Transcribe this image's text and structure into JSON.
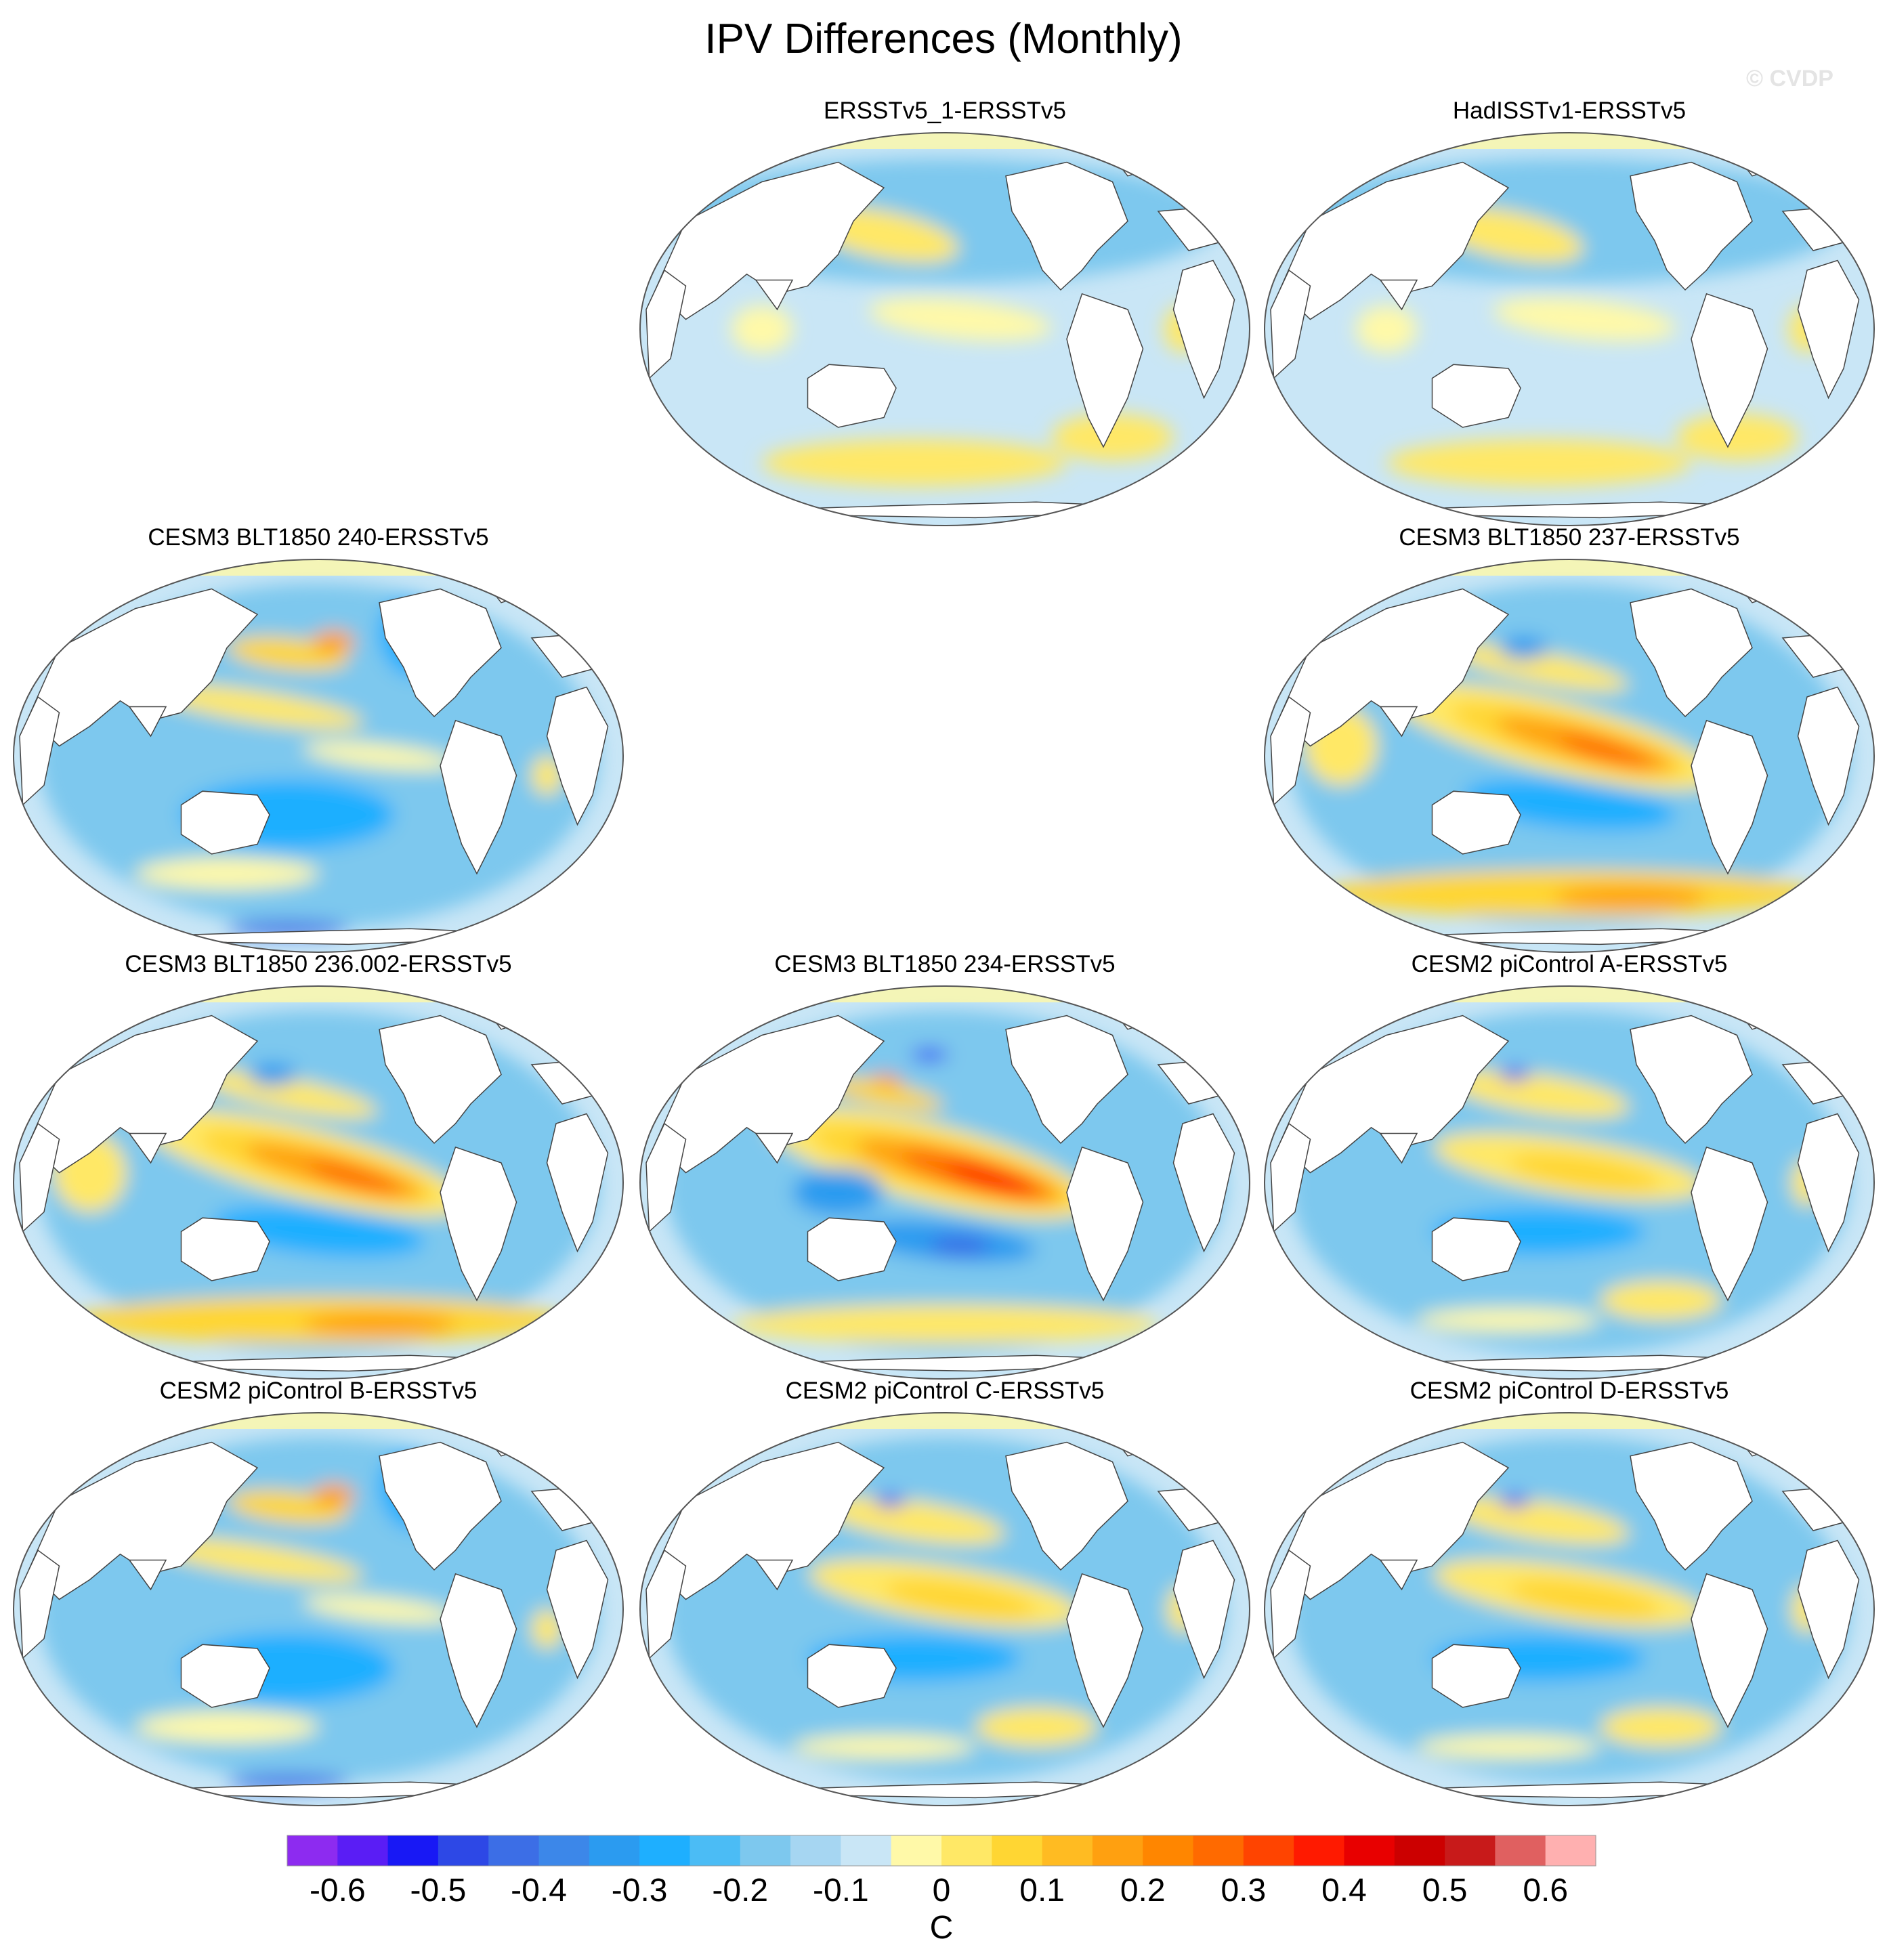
{
  "title": "IPV Differences (Monthly)",
  "watermark": "© CVDP",
  "panels": [
    {
      "title": "ERSSTv5_1-ERSSTv5",
      "row": 0,
      "col": 1,
      "pattern": "obs"
    },
    {
      "title": "HadISSTv1-ERSSTv5",
      "row": 0,
      "col": 2,
      "pattern": "obs"
    },
    {
      "title": "CESM3 BLT1850 240-ERSSTv5",
      "row": 1,
      "col": 0,
      "pattern": "cool"
    },
    {
      "title": "CESM3 BLT1850 237-ERSSTv5",
      "row": 1,
      "col": 2,
      "pattern": "strong"
    },
    {
      "title": "CESM3 BLT1850 236.002-ERSSTv5",
      "row": 2,
      "col": 0,
      "pattern": "strong"
    },
    {
      "title": "CESM3 BLT1850 234-ERSSTv5",
      "row": 2,
      "col": 1,
      "pattern": "vstrong"
    },
    {
      "title": "CESM2 piControl A-ERSSTv5",
      "row": 2,
      "col": 2,
      "pattern": "weak"
    },
    {
      "title": "CESM2 piControl B-ERSSTv5",
      "row": 3,
      "col": 0,
      "pattern": "cool"
    },
    {
      "title": "CESM2 piControl C-ERSSTv5",
      "row": 3,
      "col": 1,
      "pattern": "weak"
    },
    {
      "title": "CESM2 piControl D-ERSSTv5",
      "row": 3,
      "col": 2,
      "pattern": "weak"
    }
  ],
  "colorbar": {
    "unit": "C",
    "labels": [
      "-0.6",
      "-0.5",
      "-0.4",
      "-0.3",
      "-0.2",
      "-0.1",
      "0",
      "0.1",
      "0.2",
      "0.3",
      "0.4",
      "0.5",
      "0.6"
    ],
    "colors": [
      "#8d2bf0",
      "#5a1df5",
      "#1818f5",
      "#2d48e6",
      "#3c6ee6",
      "#3c87e9",
      "#2b9bf0",
      "#1eafff",
      "#4bbcf5",
      "#7dc8ee",
      "#a6d6f2",
      "#c9e6f6",
      "#fff9a8",
      "#ffe866",
      "#ffd633",
      "#ffbb22",
      "#ffa010",
      "#ff8600",
      "#ff6a00",
      "#ff4400",
      "#ff1a00",
      "#e80000",
      "#cc0000",
      "#c81a1a",
      "#e06060",
      "#ffb0b0"
    ]
  }
}
